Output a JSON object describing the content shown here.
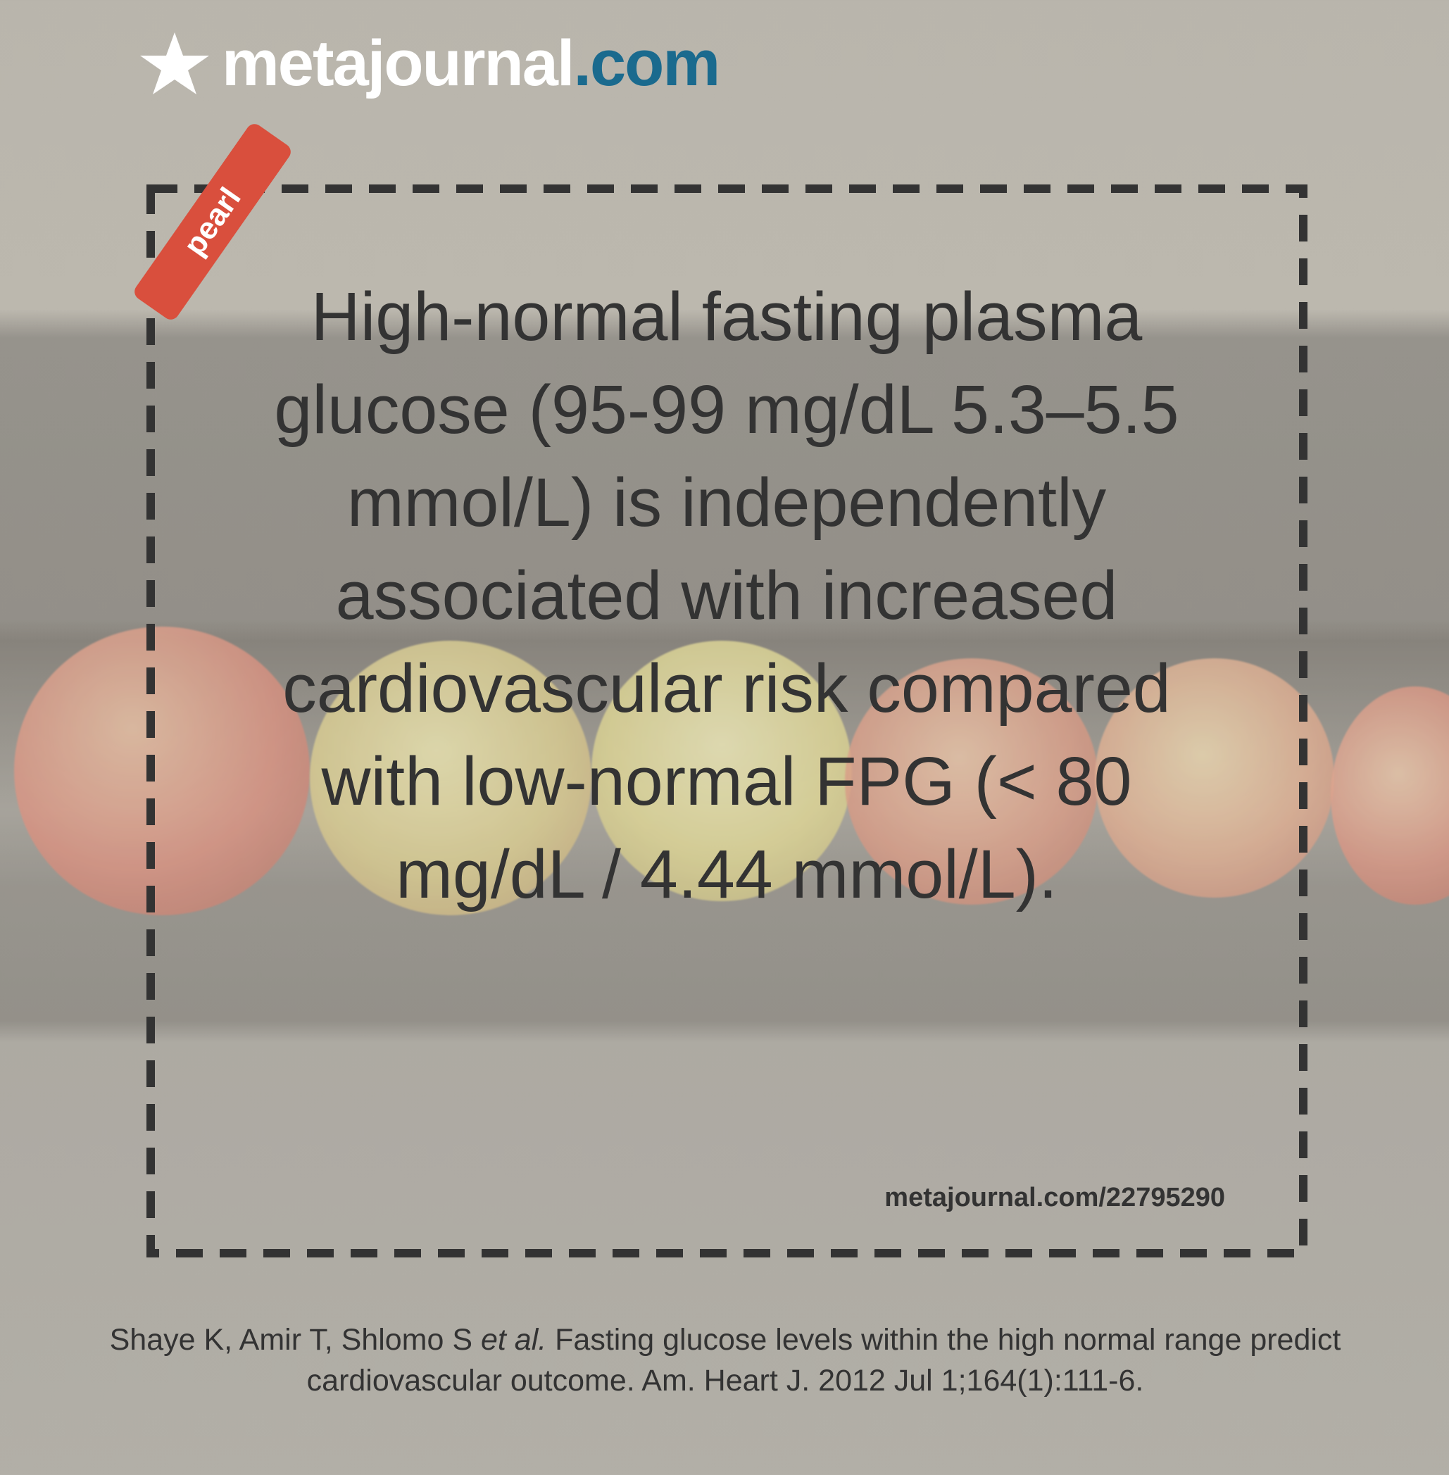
{
  "brand": {
    "name": "metajournal",
    "tld": ".com",
    "icon": "star-icon",
    "tld_color": "#1a6a8e"
  },
  "badge": {
    "label": "pearl",
    "color": "#d94f3d"
  },
  "pearl": {
    "text": "High-normal fasting plasma glucose (95-99 mg/dL 5.3–5.5 mmol/L) is independently associated with increased cardiovascular risk compared with low-normal FPG (< 80 mg/dL / 4.44 mmol/L).",
    "link": "metajournal.com/22795290"
  },
  "citation": {
    "authors": "Shaye K, Amir T, Shlomo S",
    "etal": "et al.",
    "rest": " Fasting glucose levels within the high normal range predict cardiovascular outcome. Am. Heart J. 2012 Jul 1;164(1):111-6."
  }
}
